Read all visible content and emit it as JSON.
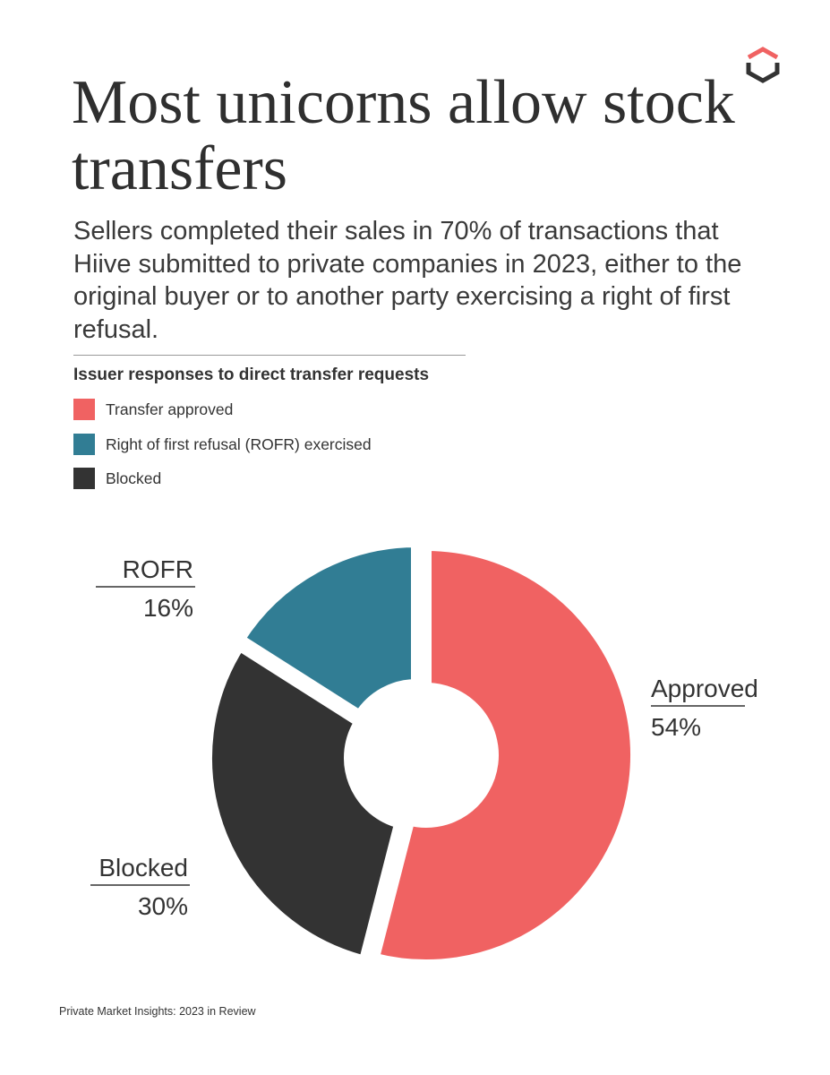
{
  "title": "Most unicorns allow stock transfers",
  "subtitle": "Sellers completed their sales in 70% of transactions that Hiive submitted to private companies in 2023, either to the original buyer or to another party exercising a right of first refusal.",
  "footer": "Private Market Insights: 2023 in Review",
  "logo_icon": "hexagon-logo-icon",
  "colors": {
    "approved": "#f06262",
    "rofr": "#317d94",
    "blocked": "#333333",
    "text": "#333333"
  },
  "chart_data": {
    "type": "pie",
    "style": "donut",
    "title": "Issuer responses to direct transfer requests",
    "legend": [
      {
        "label": "Transfer approved"
      },
      {
        "label": "Right of first refusal (ROFR) exercised"
      },
      {
        "label": "Blocked"
      }
    ],
    "slices": [
      {
        "label": "Approved",
        "value": 54,
        "value_label": "54%"
      },
      {
        "label": "Blocked",
        "value": 30,
        "value_label": "30%"
      },
      {
        "label": "ROFR",
        "value": 16,
        "value_label": "16%"
      }
    ]
  }
}
